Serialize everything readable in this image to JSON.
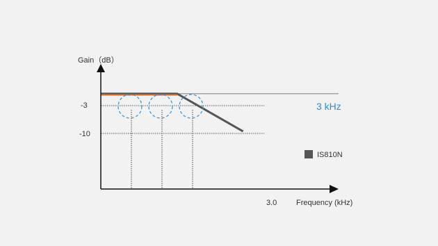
{
  "chart_data": {
    "type": "line",
    "xlabel": "Frequency (kHz)",
    "ylabel": "Gain（dB）",
    "y_ticks": [
      "-3",
      "-10"
    ],
    "x_ticks": [
      "3.0"
    ],
    "ylim": [
      -23,
      8
    ],
    "cutoff_label": "3 kHz",
    "legend": {
      "label": "IS810N",
      "placement": "right"
    },
    "series": [
      {
        "name": "IS810N",
        "color": "#555555",
        "points": [
          [
            0.0,
            0.0
          ],
          [
            2.5,
            0.0
          ],
          [
            4.65,
            -9.5
          ]
        ]
      },
      {
        "color": "#e07a3c",
        "points": [
          [
            0.0,
            -0.3
          ],
          [
            2.5,
            -0.3
          ]
        ]
      }
    ],
    "reference_lines": [
      {
        "y": 0.0,
        "style": "solid",
        "color": "#555555"
      },
      {
        "y": -3,
        "style": "dotted"
      },
      {
        "y": -10,
        "style": "dotted"
      }
    ],
    "markers": [
      {
        "x": 1.0,
        "y": -3
      },
      {
        "x": 2.0,
        "y": -3
      },
      {
        "x": 3.0,
        "y": -3
      }
    ],
    "colors": {
      "axis": "#111111",
      "accent": "#2f8fd0",
      "curve": "#555555",
      "orange": "#e07a3c"
    }
  }
}
